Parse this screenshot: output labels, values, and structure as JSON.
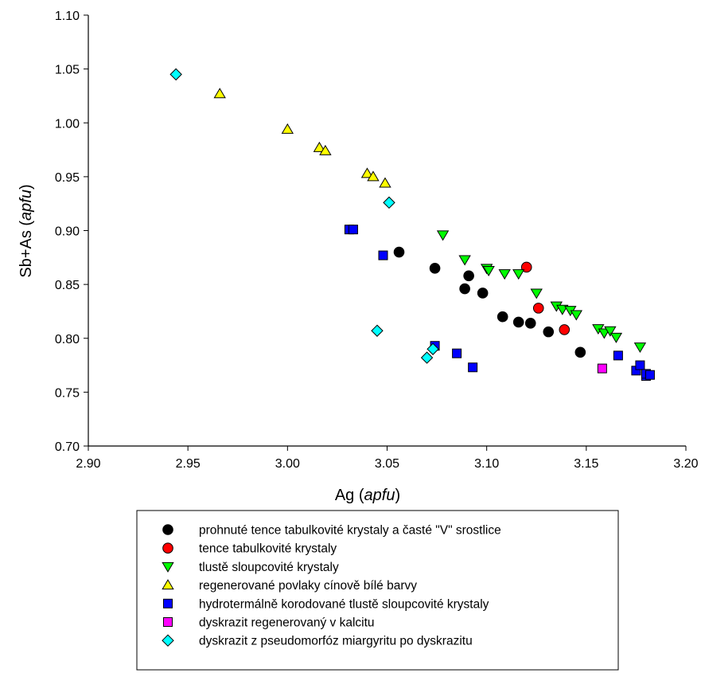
{
  "chart_data": {
    "type": "scatter",
    "xlabel": {
      "prefix": "Ag (",
      "italic": "apfu",
      "suffix": ")"
    },
    "ylabel": {
      "prefix": "Sb+As (",
      "italic": "apfu",
      "suffix": ")"
    },
    "xlim": [
      2.9,
      3.2
    ],
    "ylim": [
      0.7,
      1.1
    ],
    "xticks": [
      "2.90",
      "2.95",
      "3.00",
      "3.05",
      "3.10",
      "3.15",
      "3.20"
    ],
    "yticks": [
      "0.70",
      "0.75",
      "0.80",
      "0.85",
      "0.90",
      "0.95",
      "1.00",
      "1.05",
      "1.10"
    ],
    "grid": false,
    "legend_position": "bottom",
    "series": [
      {
        "name": "prohnuté tence tabulkovité krystaly a časté \"V\" srostlice",
        "marker": "circle",
        "color": "#000000",
        "points": [
          [
            3.056,
            0.88
          ],
          [
            3.074,
            0.865
          ],
          [
            3.089,
            0.846
          ],
          [
            3.091,
            0.858
          ],
          [
            3.098,
            0.842
          ],
          [
            3.108,
            0.82
          ],
          [
            3.116,
            0.815
          ],
          [
            3.122,
            0.814
          ],
          [
            3.131,
            0.806
          ],
          [
            3.147,
            0.787
          ]
        ]
      },
      {
        "name": "tence tabulkovité krystaly",
        "marker": "circle",
        "color": "#ff0000",
        "points": [
          [
            3.12,
            0.866
          ],
          [
            3.126,
            0.828
          ],
          [
            3.139,
            0.808
          ]
        ]
      },
      {
        "name": "tlustě sloupcovité krystaly",
        "marker": "triangle-down",
        "color": "#00ff00",
        "points": [
          [
            3.078,
            0.896
          ],
          [
            3.089,
            0.873
          ],
          [
            3.1,
            0.865
          ],
          [
            3.101,
            0.863
          ],
          [
            3.109,
            0.86
          ],
          [
            3.116,
            0.86
          ],
          [
            3.125,
            0.842
          ],
          [
            3.135,
            0.83
          ],
          [
            3.138,
            0.827
          ],
          [
            3.142,
            0.826
          ],
          [
            3.145,
            0.822
          ],
          [
            3.156,
            0.809
          ],
          [
            3.159,
            0.805
          ],
          [
            3.162,
            0.807
          ],
          [
            3.165,
            0.801
          ],
          [
            3.177,
            0.792
          ]
        ]
      },
      {
        "name": "regenerované povlaky cínově bílé barvy",
        "marker": "triangle-up",
        "color": "#ffff00",
        "points": [
          [
            2.966,
            1.027
          ],
          [
            3.0,
            0.994
          ],
          [
            3.016,
            0.977
          ],
          [
            3.019,
            0.974
          ],
          [
            3.04,
            0.953
          ],
          [
            3.043,
            0.95
          ],
          [
            3.049,
            0.944
          ]
        ]
      },
      {
        "name": "hydrotermálně korodované tlustě sloupcovité krystaly",
        "marker": "square",
        "color": "#0000ff",
        "points": [
          [
            3.031,
            0.901
          ],
          [
            3.033,
            0.901
          ],
          [
            3.048,
            0.877
          ],
          [
            3.074,
            0.793
          ],
          [
            3.085,
            0.786
          ],
          [
            3.093,
            0.773
          ],
          [
            3.166,
            0.784
          ],
          [
            3.175,
            0.77
          ],
          [
            3.177,
            0.775
          ],
          [
            3.18,
            0.765
          ],
          [
            3.18,
            0.767
          ],
          [
            3.182,
            0.766
          ]
        ]
      },
      {
        "name": "dyskrazit regenerovaný v kalcitu",
        "marker": "square",
        "color": "#ff00ff",
        "points": [
          [
            3.158,
            0.772
          ]
        ]
      },
      {
        "name": "dyskrazit z pseudomorfóz miargyritu po dyskrazitu",
        "marker": "diamond",
        "color": "#00ffff",
        "points": [
          [
            2.944,
            1.045
          ],
          [
            3.051,
            0.926
          ],
          [
            3.045,
            0.807
          ],
          [
            3.07,
            0.782
          ],
          [
            3.073,
            0.79
          ]
        ]
      }
    ]
  }
}
